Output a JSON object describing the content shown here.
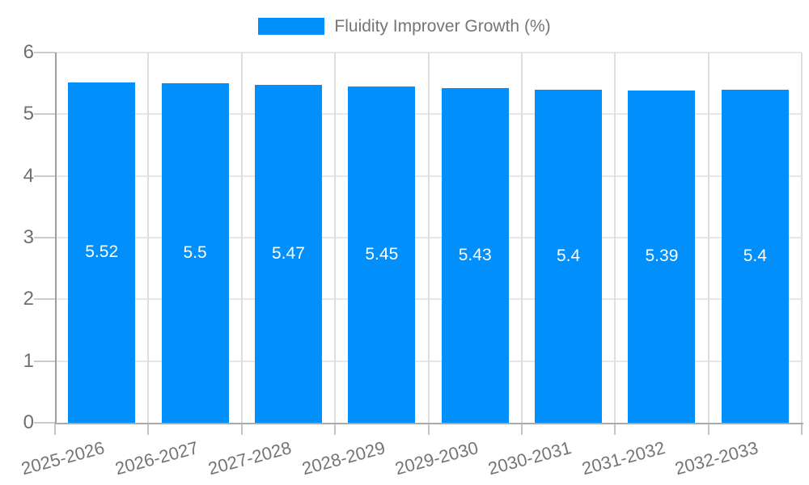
{
  "legend": {
    "label": "Fluidity Improver Growth (%)"
  },
  "chart_data": {
    "type": "bar",
    "title": "Fluidity Improver Growth (%)",
    "categories": [
      "2025-2026",
      "2026-2027",
      "2027-2028",
      "2028-2029",
      "2029-2030",
      "2030-2031",
      "2031-2032",
      "2032-2033"
    ],
    "values": [
      5.52,
      5.5,
      5.47,
      5.45,
      5.43,
      5.4,
      5.39,
      5.4
    ],
    "value_labels": [
      "5.52",
      "5.5",
      "5.47",
      "5.45",
      "5.43",
      "5.4",
      "5.39",
      "5.4"
    ],
    "series_name": "Fluidity Improver Growth (%)",
    "xlabel": "",
    "ylabel": "",
    "ylim": [
      0,
      6
    ],
    "yticks": [
      0,
      1,
      2,
      3,
      4,
      5,
      6
    ],
    "grid": true,
    "legend_position": "top",
    "bar_color": "#008FFB",
    "value_label_color": "#ffffff",
    "axis_text_color": "#757575"
  },
  "colors": {
    "bar": "#008FFB",
    "axis_line": "#9e9e9e",
    "gridline": "#e7e7e7",
    "tick": "#c9c9c9",
    "text": "#757575",
    "background": "#ffffff"
  }
}
